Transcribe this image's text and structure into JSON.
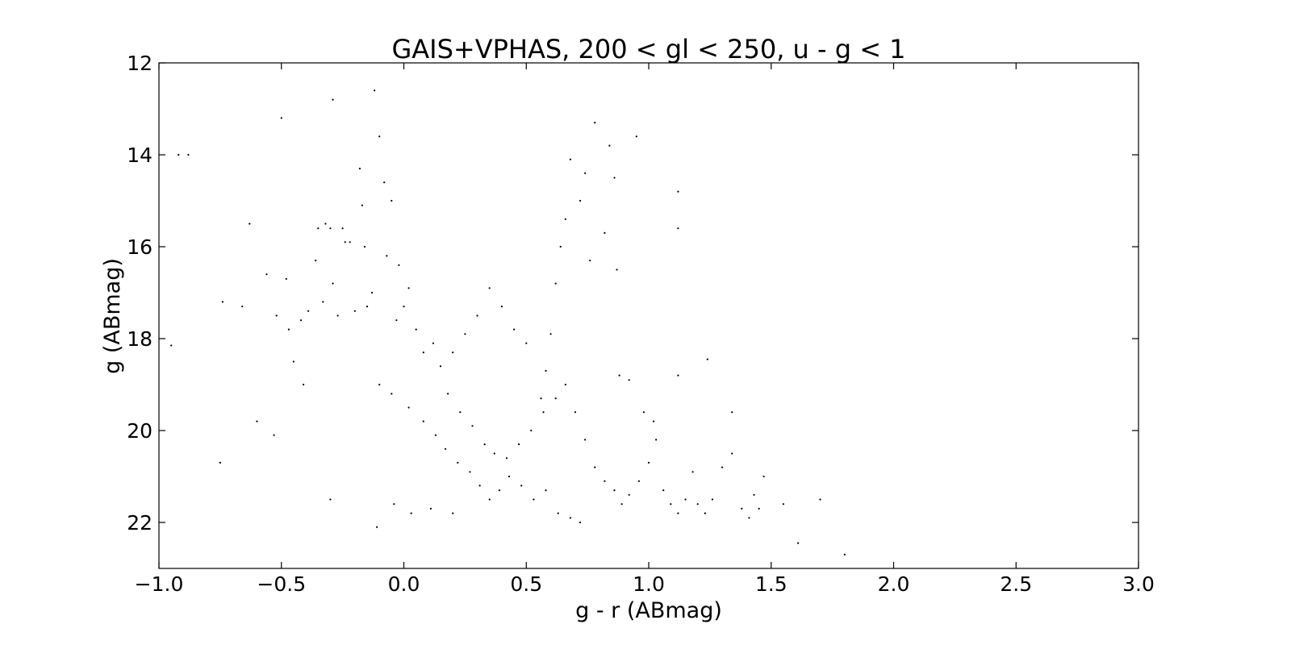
{
  "chart_data": {
    "type": "scatter",
    "title": "GAIS+VPHAS, 200 < gl < 250, u - g < 1",
    "xlabel": "g - r (ABmag)",
    "ylabel": "g (ABmag)",
    "xlim": [
      -1.0,
      3.0
    ],
    "ylim": [
      23,
      12
    ],
    "y_inverted": true,
    "grid": false,
    "marker_color": "#000000",
    "xticks": [
      -1.0,
      -0.5,
      0.0,
      0.5,
      1.0,
      1.5,
      2.0,
      2.5,
      3.0
    ],
    "xtick_labels": [
      "−1.0",
      "−0.5",
      "0.0",
      "0.5",
      "1.0",
      "1.5",
      "2.0",
      "2.5",
      "3.0"
    ],
    "yticks": [
      12,
      14,
      16,
      18,
      20,
      22
    ],
    "ytick_labels": [
      "12",
      "14",
      "16",
      "18",
      "20",
      "22"
    ],
    "points": [
      [
        -0.92,
        14.0
      ],
      [
        -0.88,
        14.0
      ],
      [
        -0.95,
        18.15
      ],
      [
        -0.74,
        17.2
      ],
      [
        -0.75,
        20.7
      ],
      [
        -0.66,
        17.3
      ],
      [
        -0.63,
        15.5
      ],
      [
        -0.6,
        19.8
      ],
      [
        -0.56,
        16.6
      ],
      [
        -0.53,
        20.1
      ],
      [
        -0.52,
        17.5
      ],
      [
        -0.5,
        13.2
      ],
      [
        -0.48,
        16.7
      ],
      [
        -0.47,
        17.8
      ],
      [
        -0.45,
        18.5
      ],
      [
        -0.42,
        17.6
      ],
      [
        -0.41,
        19.0
      ],
      [
        -0.39,
        17.4
      ],
      [
        -0.36,
        16.3
      ],
      [
        -0.35,
        15.6
      ],
      [
        -0.33,
        17.2
      ],
      [
        -0.32,
        15.5
      ],
      [
        -0.3,
        15.6
      ],
      [
        -0.29,
        12.8
      ],
      [
        -0.29,
        16.8
      ],
      [
        -0.27,
        17.5
      ],
      [
        -0.25,
        15.6
      ],
      [
        -0.24,
        15.9
      ],
      [
        -0.22,
        15.9
      ],
      [
        -0.2,
        17.4
      ],
      [
        -0.18,
        14.3
      ],
      [
        -0.17,
        15.1
      ],
      [
        -0.16,
        16.0
      ],
      [
        -0.15,
        17.3
      ],
      [
        -0.13,
        17.0
      ],
      [
        -0.12,
        12.6
      ],
      [
        -0.1,
        13.6
      ],
      [
        -0.08,
        14.6
      ],
      [
        -0.07,
        16.2
      ],
      [
        -0.05,
        15.0
      ],
      [
        -0.03,
        17.6
      ],
      [
        -0.02,
        16.4
      ],
      [
        0.0,
        17.3
      ],
      [
        0.02,
        16.9
      ],
      [
        0.05,
        17.8
      ],
      [
        0.08,
        18.3
      ],
      [
        0.12,
        18.1
      ],
      [
        0.15,
        18.6
      ],
      [
        -0.1,
        19.0
      ],
      [
        -0.05,
        19.2
      ],
      [
        0.02,
        19.5
      ],
      [
        0.08,
        19.8
      ],
      [
        0.13,
        20.1
      ],
      [
        0.17,
        20.4
      ],
      [
        0.22,
        20.7
      ],
      [
        0.27,
        20.9
      ],
      [
        0.31,
        21.2
      ],
      [
        0.35,
        21.5
      ],
      [
        0.39,
        21.3
      ],
      [
        0.42,
        20.6
      ],
      [
        0.47,
        20.3
      ],
      [
        0.52,
        20.0
      ],
      [
        0.57,
        19.6
      ],
      [
        0.62,
        19.3
      ],
      [
        0.66,
        19.0
      ],
      [
        0.7,
        19.6
      ],
      [
        0.74,
        20.2
      ],
      [
        0.78,
        20.8
      ],
      [
        0.82,
        21.1
      ],
      [
        0.86,
        21.3
      ],
      [
        0.89,
        21.6
      ],
      [
        0.92,
        21.4
      ],
      [
        0.96,
        21.1
      ],
      [
        1.0,
        20.7
      ],
      [
        1.03,
        20.2
      ],
      [
        1.06,
        21.3
      ],
      [
        1.09,
        21.6
      ],
      [
        1.12,
        21.8
      ],
      [
        1.15,
        21.5
      ],
      [
        1.18,
        20.9
      ],
      [
        1.2,
        21.6
      ],
      [
        1.23,
        21.8
      ],
      [
        1.26,
        21.5
      ],
      [
        1.3,
        20.8
      ],
      [
        1.34,
        20.5
      ],
      [
        1.38,
        21.7
      ],
      [
        1.41,
        21.9
      ],
      [
        1.43,
        21.4
      ],
      [
        1.45,
        21.7
      ],
      [
        1.47,
        21.0
      ],
      [
        1.55,
        21.6
      ],
      [
        1.61,
        22.45
      ],
      [
        1.7,
        21.5
      ],
      [
        1.8,
        22.7
      ],
      [
        0.88,
        18.8
      ],
      [
        0.92,
        18.9
      ],
      [
        0.98,
        19.6
      ],
      [
        1.02,
        19.8
      ],
      [
        1.12,
        18.8
      ],
      [
        1.24,
        18.45
      ],
      [
        1.34,
        19.6
      ],
      [
        0.95,
        13.6
      ],
      [
        1.12,
        14.8
      ],
      [
        1.12,
        15.6
      ],
      [
        0.87,
        16.5
      ],
      [
        0.82,
        15.7
      ],
      [
        0.76,
        16.3
      ],
      [
        0.72,
        15.0
      ],
      [
        0.86,
        14.5
      ],
      [
        0.84,
        13.8
      ],
      [
        0.78,
        13.3
      ],
      [
        0.74,
        14.4
      ],
      [
        0.68,
        14.1
      ],
      [
        0.66,
        15.4
      ],
      [
        0.64,
        16.0
      ],
      [
        0.62,
        16.8
      ],
      [
        0.6,
        17.9
      ],
      [
        0.58,
        18.7
      ],
      [
        0.56,
        19.3
      ],
      [
        0.5,
        18.1
      ],
      [
        0.45,
        17.8
      ],
      [
        0.4,
        17.3
      ],
      [
        0.35,
        16.9
      ],
      [
        0.3,
        17.5
      ],
      [
        0.25,
        17.9
      ],
      [
        0.2,
        18.3
      ],
      [
        0.18,
        19.2
      ],
      [
        0.23,
        19.6
      ],
      [
        0.28,
        19.9
      ],
      [
        0.33,
        20.3
      ],
      [
        0.37,
        20.5
      ],
      [
        0.43,
        21.0
      ],
      [
        0.48,
        21.2
      ],
      [
        0.53,
        21.5
      ],
      [
        0.58,
        21.3
      ],
      [
        0.63,
        21.8
      ],
      [
        0.68,
        21.9
      ],
      [
        0.72,
        22.0
      ],
      [
        -0.11,
        22.1
      ],
      [
        -0.04,
        21.6
      ],
      [
        0.03,
        21.8
      ],
      [
        0.11,
        21.7
      ],
      [
        0.2,
        21.8
      ],
      [
        -0.3,
        21.5
      ]
    ]
  }
}
